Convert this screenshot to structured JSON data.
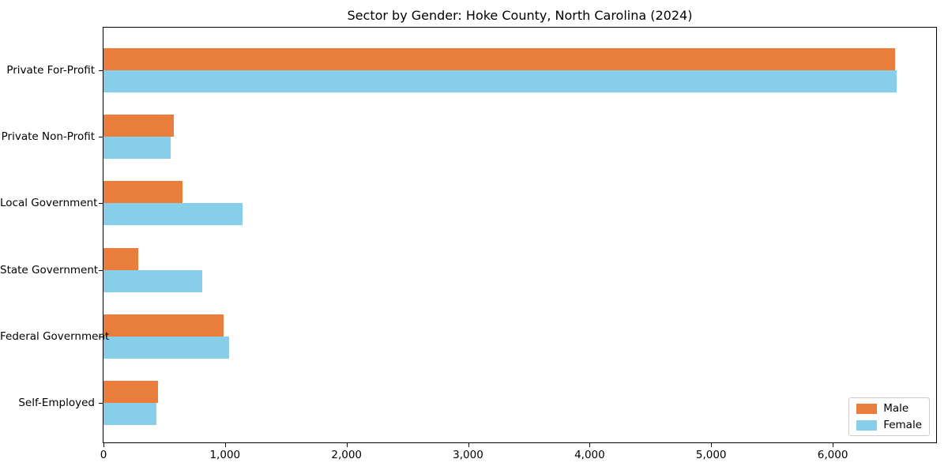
{
  "chart_data": {
    "type": "bar",
    "orientation": "horizontal",
    "title": "Sector by Gender: Hoke County, North Carolina (2024)",
    "categories": [
      "Private For-Profit",
      "Private Non-Profit",
      "Local Government",
      "State Government",
      "Federal Government",
      "Self-Employed"
    ],
    "series": [
      {
        "name": "Male",
        "color": "#E87D3C",
        "values": [
          6512,
          575,
          648,
          284,
          986,
          450
        ]
      },
      {
        "name": "Female",
        "color": "#87CEEB",
        "values": [
          6526,
          554,
          1142,
          813,
          1036,
          435
        ]
      }
    ],
    "xlabel": "",
    "ylabel": "",
    "xlim": [
      0,
      6851
    ],
    "xticks": [
      0,
      1000,
      2000,
      3000,
      4000,
      5000,
      6000
    ],
    "xtick_labels": [
      "0",
      "1,000",
      "2,000",
      "3,000",
      "4,000",
      "5,000",
      "6,000"
    ],
    "legend_position": "lower right",
    "grid": false,
    "background": "#ffffff",
    "text_color": "#000000"
  }
}
